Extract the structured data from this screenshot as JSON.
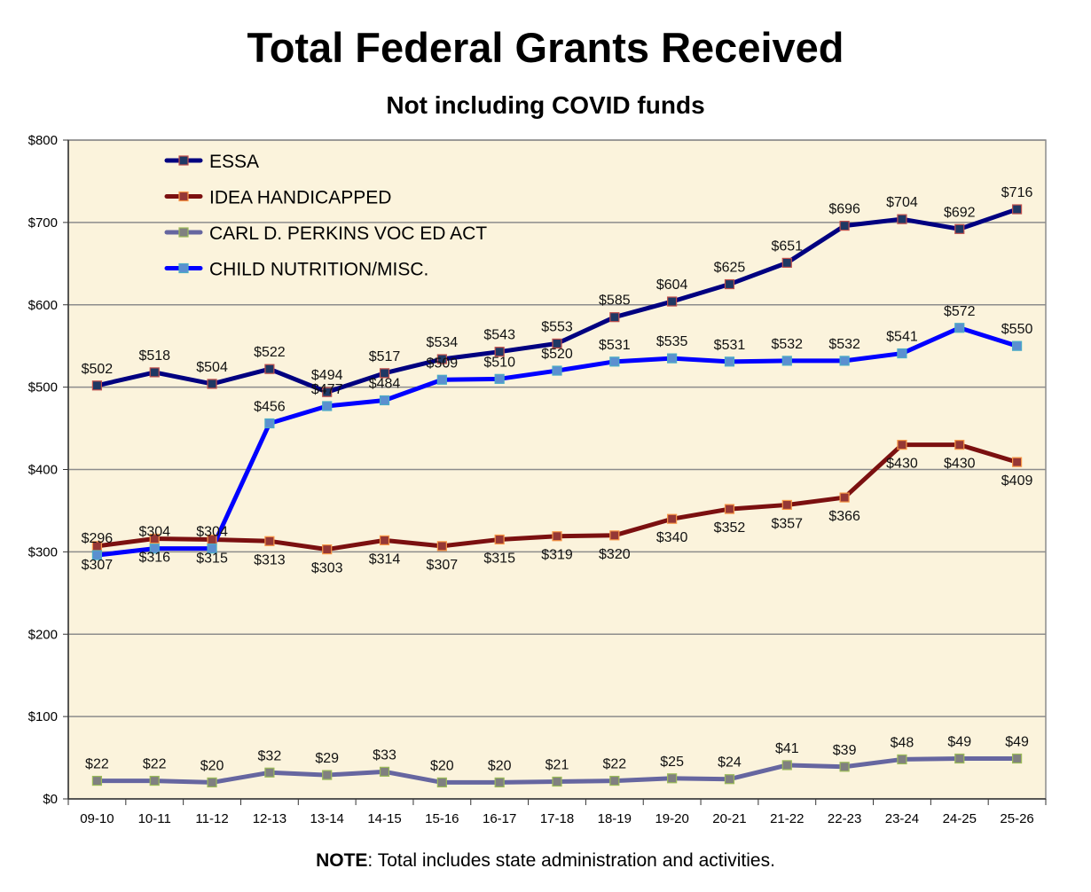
{
  "chart_data": {
    "type": "line",
    "title": "Total Federal Grants Received",
    "subtitle": "Not including COVID funds",
    "xlabel": "",
    "ylabel": "",
    "ylim": [
      0,
      800
    ],
    "y_ticks": [
      0,
      100,
      200,
      300,
      400,
      500,
      600,
      700,
      800
    ],
    "y_tick_labels": [
      "$0",
      "$100",
      "$200",
      "$300",
      "$400",
      "$500",
      "$600",
      "$700",
      "$800"
    ],
    "grid": true,
    "legend_position": "top-left",
    "plot_background": "#fbf3dc",
    "categories": [
      "09-10",
      "10-11",
      "11-12",
      "12-13",
      "13-14",
      "14-15",
      "15-16",
      "16-17",
      "17-18",
      "18-19",
      "19-20",
      "20-21",
      "21-22",
      "22-23",
      "23-24",
      "24-25",
      "25-26"
    ],
    "series": [
      {
        "name": "ESSA",
        "line_color": "#000080",
        "marker_fill": "#1f3864",
        "marker_edge": "#c0504d",
        "label_position": "above",
        "values": [
          502,
          518,
          504,
          522,
          494,
          517,
          534,
          543,
          553,
          585,
          604,
          625,
          651,
          696,
          704,
          692,
          716
        ]
      },
      {
        "name": "IDEA HANDICAPPED",
        "line_color": "#7b1010",
        "marker_fill": "#953735",
        "marker_edge": "#f79646",
        "label_position": "below",
        "values": [
          307,
          316,
          315,
          313,
          303,
          314,
          307,
          315,
          319,
          320,
          340,
          352,
          357,
          366,
          430,
          430,
          409
        ]
      },
      {
        "name": "CARL D. PERKINS VOC ED ACT",
        "line_color": "#6666a0",
        "marker_fill": "#808080",
        "marker_edge": "#9bbb59",
        "label_position": "above",
        "values": [
          22,
          22,
          20,
          32,
          29,
          33,
          20,
          20,
          21,
          22,
          25,
          24,
          41,
          39,
          48,
          49,
          49
        ]
      },
      {
        "name": "CHILD NUTRITION/MISC.",
        "line_color": "#0000ff",
        "marker_fill": "#5b8fd0",
        "marker_edge": "#4bacc6",
        "label_position": "above",
        "values": [
          296,
          304,
          304,
          456,
          477,
          484,
          509,
          510,
          520,
          531,
          535,
          531,
          532,
          532,
          541,
          572,
          550
        ]
      }
    ],
    "value_prefix": "$"
  },
  "note": {
    "bold": "NOTE",
    "text": ": Total includes state administration and activities."
  }
}
